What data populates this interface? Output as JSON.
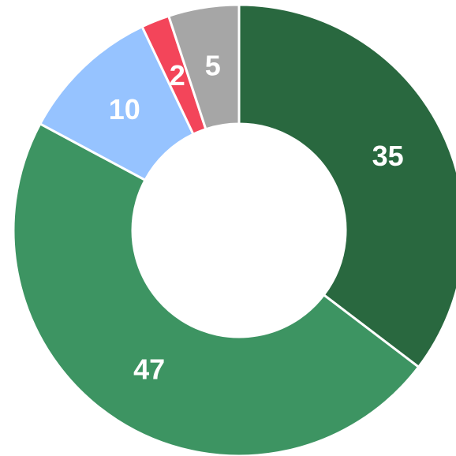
{
  "chart_data": {
    "type": "donut",
    "values": [
      35,
      47,
      10,
      2,
      5
    ],
    "colors": [
      "#29683f",
      "#3d9462",
      "#96c3ff",
      "#f3455a",
      "#a6a6a6"
    ]
  }
}
